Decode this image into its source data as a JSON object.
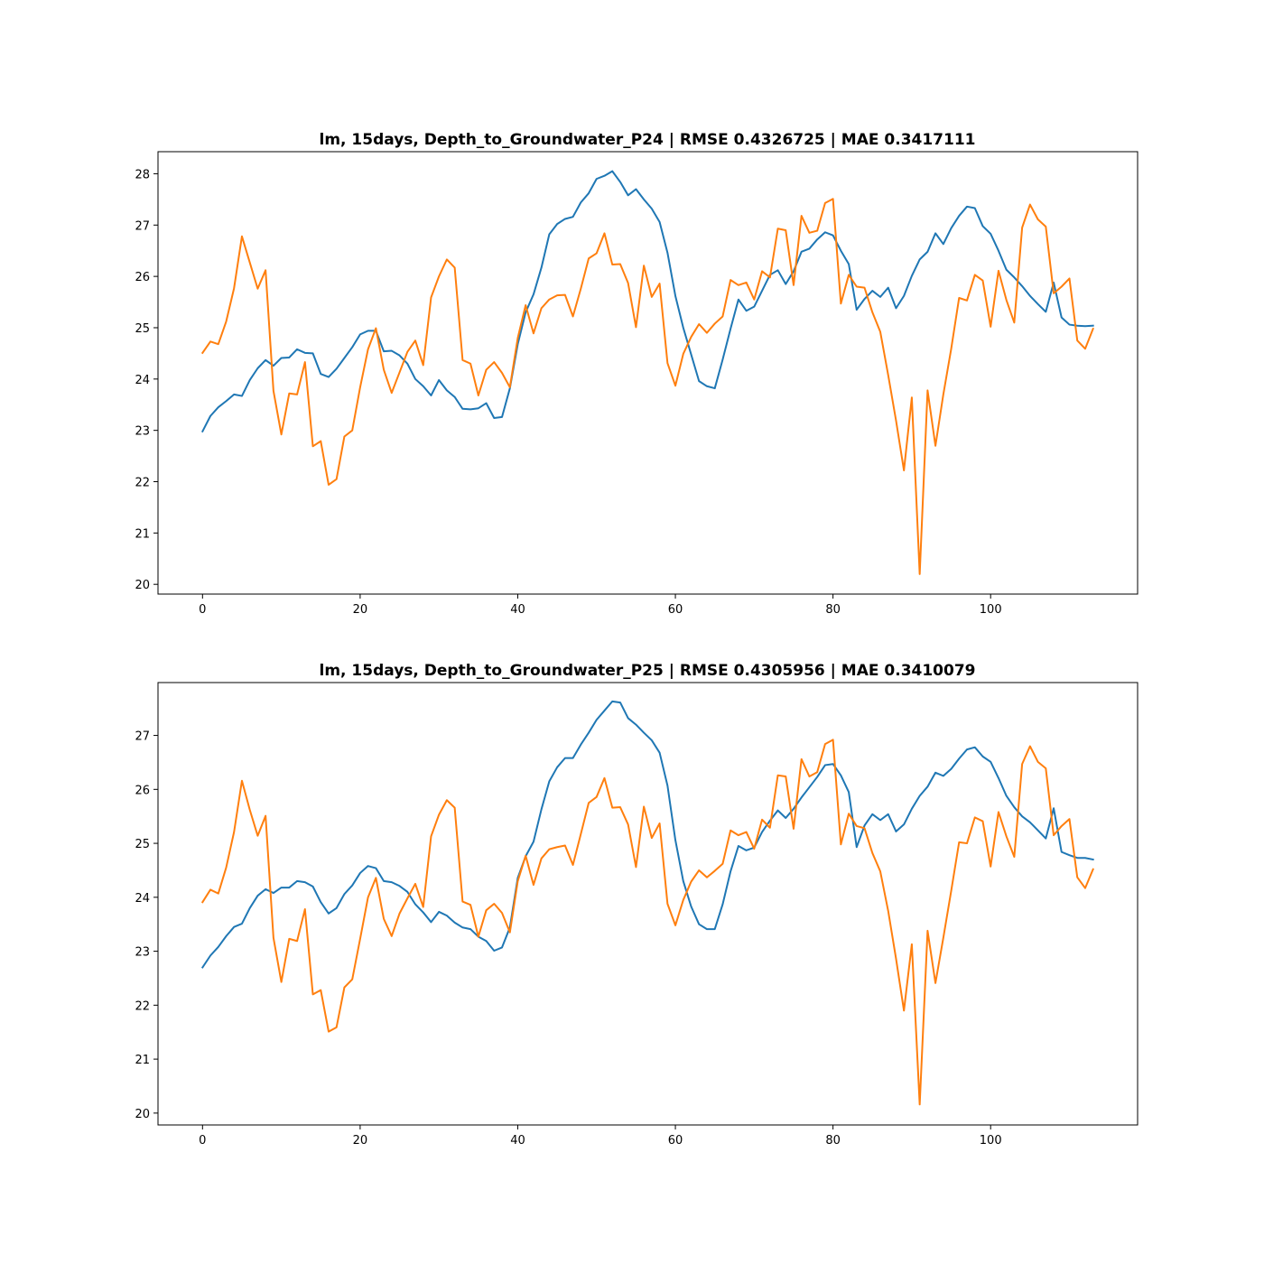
{
  "figure_background": "#ffffff",
  "series_colors": [
    "#1f77b4",
    "#ff7f0e"
  ],
  "chart_data": [
    {
      "type": "line",
      "title": "lm, 15days, Depth_to_Groundwater_P24 | RMSE 0.4326725 | MAE 0.3417111",
      "xlabel": "",
      "ylabel": "",
      "xlim": [
        -5.65,
        118.65
      ],
      "ylim": [
        19.81,
        28.43
      ],
      "xticks": [
        0,
        20,
        40,
        60,
        80,
        100
      ],
      "yticks": [
        20,
        21,
        22,
        23,
        24,
        25,
        26,
        27,
        28
      ],
      "grid": false,
      "x_start": 0,
      "series": [
        {
          "color": "#1f77b4",
          "values": [
            22.98,
            23.28,
            23.45,
            23.57,
            23.7,
            23.67,
            23.98,
            24.21,
            24.37,
            24.26,
            24.41,
            24.42,
            24.58,
            24.51,
            24.5,
            24.1,
            24.04,
            24.2,
            24.41,
            24.62,
            24.87,
            24.94,
            24.94,
            24.54,
            24.55,
            24.46,
            24.3,
            24.0,
            23.86,
            23.68,
            23.98,
            23.78,
            23.65,
            23.42,
            23.41,
            23.43,
            23.53,
            23.24,
            23.26,
            23.82,
            24.68,
            25.3,
            25.65,
            26.17,
            26.82,
            27.02,
            27.12,
            27.16,
            27.44,
            27.62,
            27.9,
            27.96,
            28.05,
            27.84,
            27.58,
            27.7,
            27.5,
            27.32,
            27.06,
            26.46,
            25.62,
            25.0,
            24.48,
            23.96,
            23.86,
            23.82,
            24.38,
            24.98,
            25.55,
            25.33,
            25.41,
            25.72,
            26.03,
            26.12,
            25.85,
            26.1,
            26.48,
            26.54,
            26.72,
            26.86,
            26.8,
            26.5,
            26.24,
            25.35,
            25.56,
            25.72,
            25.6,
            25.78,
            25.38,
            25.62,
            26.01,
            26.33,
            26.48,
            26.84,
            26.63,
            26.94,
            27.18,
            27.36,
            27.33,
            26.98,
            26.83,
            26.5,
            26.13,
            25.98,
            25.81,
            25.62,
            25.46,
            25.31,
            25.88,
            25.2,
            25.06,
            25.04,
            25.03,
            25.04
          ]
        },
        {
          "color": "#ff7f0e",
          "values": [
            24.51,
            24.73,
            24.68,
            25.12,
            25.77,
            26.78,
            26.27,
            25.76,
            26.12,
            23.77,
            22.92,
            23.72,
            23.7,
            24.33,
            22.69,
            22.79,
            21.94,
            22.05,
            22.88,
            23.0,
            23.84,
            24.58,
            24.99,
            24.18,
            23.73,
            24.13,
            24.53,
            24.75,
            24.27,
            25.59,
            26.0,
            26.33,
            26.17,
            24.37,
            24.3,
            23.68,
            24.18,
            24.33,
            24.12,
            23.84,
            24.8,
            25.44,
            24.89,
            25.38,
            25.55,
            25.63,
            25.64,
            25.22,
            25.76,
            26.35,
            26.45,
            26.84,
            26.23,
            26.24,
            25.87,
            25.01,
            26.21,
            25.6,
            25.86,
            24.31,
            23.87,
            24.49,
            24.82,
            25.07,
            24.9,
            25.08,
            25.22,
            25.93,
            25.83,
            25.88,
            25.55,
            26.1,
            25.98,
            26.93,
            26.9,
            25.83,
            27.18,
            26.85,
            26.89,
            27.43,
            27.51,
            25.47,
            26.03,
            25.8,
            25.78,
            25.3,
            24.92,
            24.08,
            23.19,
            22.22,
            23.64,
            20.2,
            23.78,
            22.7,
            23.7,
            24.59,
            25.58,
            25.53,
            26.03,
            25.92,
            25.02,
            26.11,
            25.54,
            25.1,
            26.95,
            27.4,
            27.11,
            26.97,
            25.67,
            25.8,
            25.96,
            24.75,
            24.59,
            24.98
          ]
        }
      ]
    },
    {
      "type": "line",
      "title": "lm, 15days, Depth_to_Groundwater_P25 | RMSE 0.4305956 | MAE 0.3410079",
      "xlabel": "",
      "ylabel": "",
      "xlim": [
        -5.65,
        118.65
      ],
      "ylim": [
        19.78,
        27.98
      ],
      "xticks": [
        0,
        20,
        40,
        60,
        80,
        100
      ],
      "yticks": [
        20,
        21,
        22,
        23,
        24,
        25,
        26,
        27,
        28
      ],
      "grid": false,
      "x_start": 0,
      "series": [
        {
          "color": "#1f77b4",
          "values": [
            22.7,
            22.92,
            23.08,
            23.28,
            23.45,
            23.51,
            23.8,
            24.03,
            24.15,
            24.08,
            24.18,
            24.18,
            24.3,
            24.28,
            24.2,
            23.91,
            23.7,
            23.8,
            24.06,
            24.22,
            24.45,
            24.58,
            24.54,
            24.3,
            24.28,
            24.21,
            24.1,
            23.87,
            23.72,
            23.54,
            23.73,
            23.66,
            23.53,
            23.44,
            23.41,
            23.27,
            23.19,
            23.01,
            23.07,
            23.44,
            24.36,
            24.76,
            25.03,
            25.63,
            26.15,
            26.41,
            26.58,
            26.58,
            26.83,
            27.05,
            27.29,
            27.46,
            27.63,
            27.61,
            27.32,
            27.2,
            27.05,
            26.91,
            26.68,
            26.07,
            25.06,
            24.3,
            23.83,
            23.5,
            23.41,
            23.41,
            23.87,
            24.48,
            24.95,
            24.87,
            24.92,
            25.21,
            25.42,
            25.61,
            25.47,
            25.64,
            25.85,
            26.04,
            26.23,
            26.45,
            26.47,
            26.26,
            25.95,
            24.93,
            25.33,
            25.54,
            25.43,
            25.54,
            25.22,
            25.35,
            25.64,
            25.88,
            26.05,
            26.31,
            26.25,
            26.38,
            26.57,
            26.74,
            26.78,
            26.61,
            26.51,
            26.21,
            25.88,
            25.67,
            25.5,
            25.39,
            25.24,
            25.09,
            25.65,
            24.84,
            24.78,
            24.73,
            24.73,
            24.7
          ]
        },
        {
          "color": "#ff7f0e",
          "values": [
            23.91,
            24.14,
            24.07,
            24.55,
            25.21,
            26.16,
            25.62,
            25.14,
            25.51,
            23.25,
            22.43,
            23.23,
            23.19,
            23.78,
            22.2,
            22.28,
            21.51,
            21.59,
            22.33,
            22.48,
            23.23,
            24.0,
            24.36,
            23.6,
            23.28,
            23.7,
            23.98,
            24.25,
            23.82,
            25.13,
            25.53,
            25.8,
            25.66,
            23.92,
            23.86,
            23.27,
            23.76,
            23.88,
            23.71,
            23.35,
            24.3,
            24.77,
            24.23,
            24.72,
            24.89,
            24.93,
            24.96,
            24.6,
            25.17,
            25.75,
            25.86,
            26.21,
            25.66,
            25.67,
            25.35,
            24.56,
            25.68,
            25.1,
            25.37,
            23.88,
            23.48,
            23.95,
            24.29,
            24.5,
            24.37,
            24.49,
            24.62,
            25.24,
            25.15,
            25.21,
            24.9,
            25.44,
            25.29,
            26.26,
            26.24,
            25.27,
            26.56,
            26.24,
            26.32,
            26.84,
            26.92,
            24.98,
            25.55,
            25.32,
            25.28,
            24.82,
            24.48,
            23.75,
            22.86,
            21.9,
            23.13,
            20.16,
            23.38,
            22.41,
            23.25,
            24.12,
            25.02,
            25.0,
            25.48,
            25.41,
            24.57,
            25.58,
            25.13,
            24.75,
            26.47,
            26.8,
            26.51,
            26.39,
            25.15,
            25.32,
            25.45,
            24.37,
            24.17,
            24.52
          ]
        }
      ]
    }
  ]
}
